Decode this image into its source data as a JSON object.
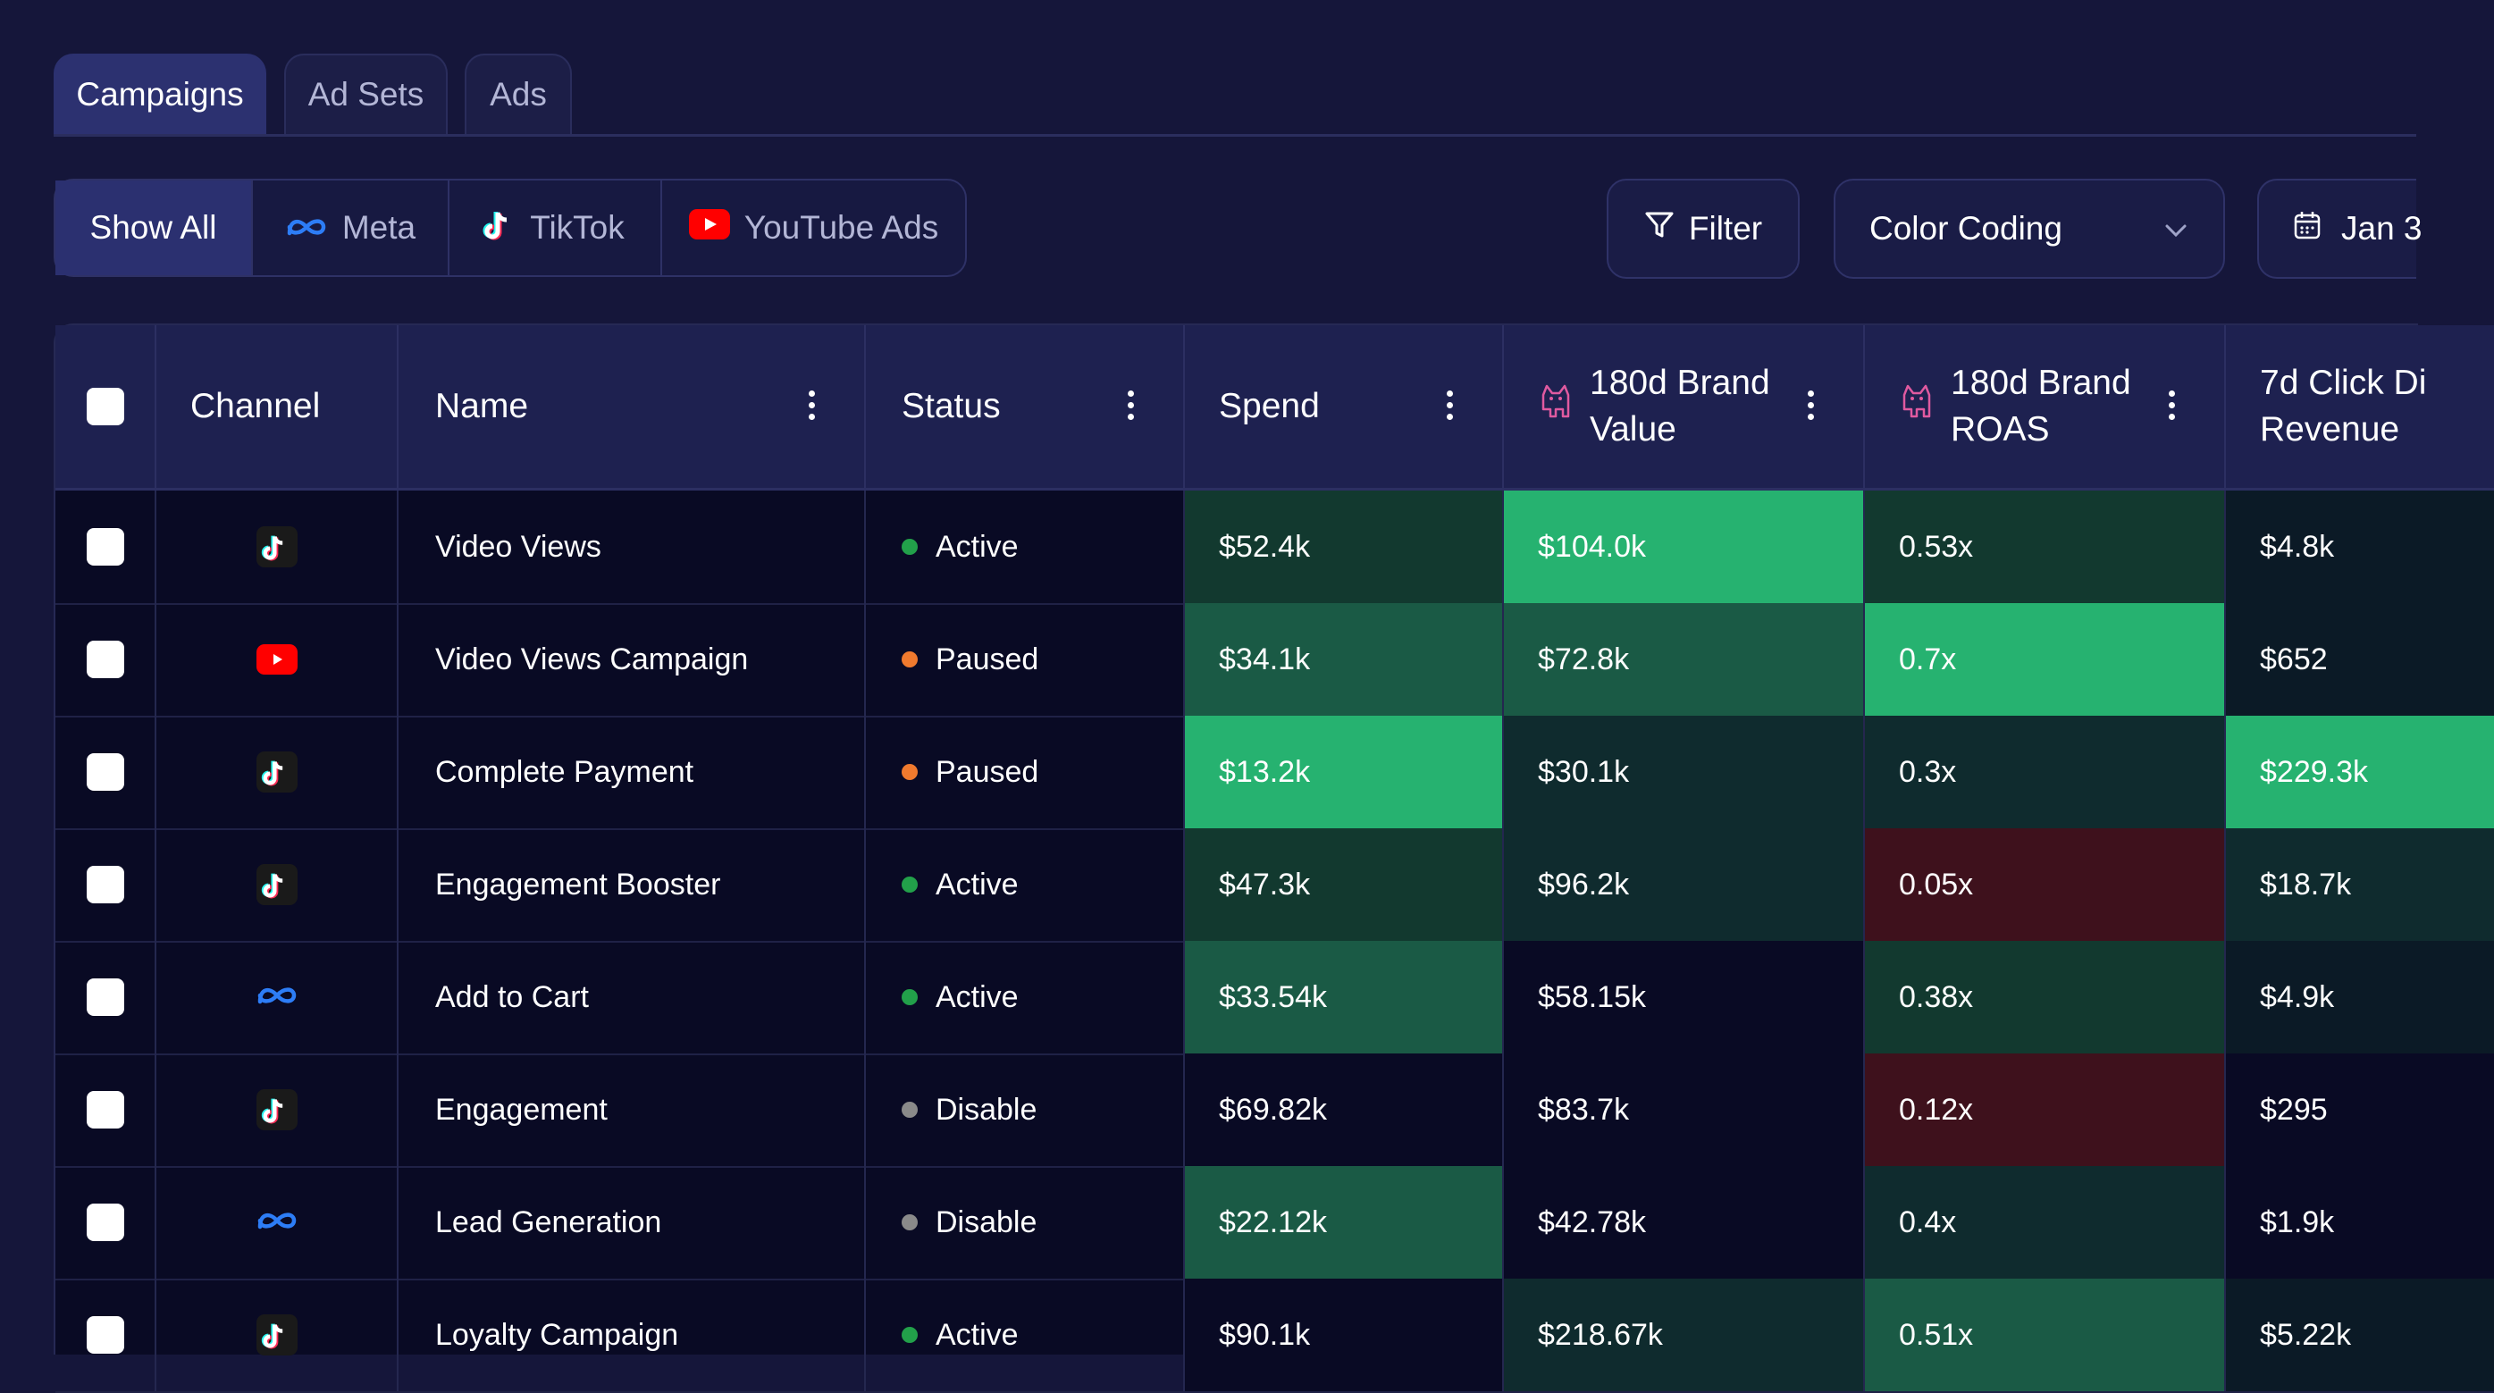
{
  "tabs": [
    "Campaigns",
    "Ad Sets",
    "Ads"
  ],
  "filters": {
    "show_all": "Show All",
    "meta": "Meta",
    "tiktok": "TikTok",
    "youtube": "YouTube Ads"
  },
  "toolbar": {
    "filter_label": "Filter",
    "color_coding_label": "Color Coding",
    "date_label": "Jan 3"
  },
  "table": {
    "headers": {
      "channel": "Channel",
      "name": "Name",
      "status": "Status",
      "spend": "Spend",
      "brand_value_1": "180d Brand",
      "brand_value_2": "Value",
      "brand_roas_1": "180d Brand",
      "brand_roas_2": "ROAS",
      "click_rev_1": "7d Click Di",
      "click_rev_2": "Revenue"
    },
    "rows": [
      {
        "channel": "tiktok",
        "name": "Video Views",
        "status": "Active",
        "spend": "$52.4k",
        "brand_value": "$104.0k",
        "brand_roas": "0.53x",
        "click_rev": "$4.8k"
      },
      {
        "channel": "youtube",
        "name": "Video Views Campaign",
        "status": "Paused",
        "spend": "$34.1k",
        "brand_value": "$72.8k",
        "brand_roas": "0.7x",
        "click_rev": "$652"
      },
      {
        "channel": "tiktok",
        "name": "Complete Payment",
        "status": "Paused",
        "spend": "$13.2k",
        "brand_value": "$30.1k",
        "brand_roas": "0.3x",
        "click_rev": "$229.3k"
      },
      {
        "channel": "tiktok",
        "name": "Engagement Booster",
        "status": "Active",
        "spend": "$47.3k",
        "brand_value": "$96.2k",
        "brand_roas": "0.05x",
        "click_rev": "$18.7k"
      },
      {
        "channel": "meta",
        "name": "Add to Cart",
        "status": "Active",
        "spend": "$33.54k",
        "brand_value": "$58.15k",
        "brand_roas": "0.38x",
        "click_rev": "$4.9k"
      },
      {
        "channel": "tiktok",
        "name": "Engagement",
        "status": "Disable",
        "spend": "$69.82k",
        "brand_value": "$83.7k",
        "brand_roas": "0.12x",
        "click_rev": "$295"
      },
      {
        "channel": "meta",
        "name": "Lead Generation",
        "status": "Disable",
        "spend": "$22.12k",
        "brand_value": "$42.78k",
        "brand_roas": "0.4x",
        "click_rev": "$1.9k"
      },
      {
        "channel": "tiktok",
        "name": "Loyalty Campaign",
        "status": "Active",
        "spend": "$90.1k",
        "brand_value": "$218.67k",
        "brand_roas": "0.51x",
        "click_rev": "$5.22k"
      }
    ]
  },
  "colors": {
    "status_active": "#22a04a",
    "status_paused": "#f07a2e",
    "status_disable": "#8a8a8a",
    "cell_colors": [
      [
        "#12392f",
        "#26b270",
        "#12392f",
        "#0b1a26"
      ],
      [
        "#1a5a45",
        "#1a5a45",
        "#26b270",
        "#0b1a26"
      ],
      [
        "#26b270",
        "#0f2b2e",
        "#0f2b2e",
        "#26b270"
      ],
      [
        "#12392f",
        "#0f2b2e",
        "#3e111c",
        "#0f2b2e"
      ],
      [
        "#1a5a45",
        "#090a24",
        "#12392f",
        "#0b1a26"
      ],
      [
        "#090a24",
        "#090a24",
        "#3e111c",
        "#090a24"
      ],
      [
        "#1a5a45",
        "#090a24",
        "#0f2b2e",
        "#090a24"
      ],
      [
        "#090a24",
        "#0f2b2e",
        "#1a5a45",
        "#0b1a26"
      ]
    ]
  }
}
